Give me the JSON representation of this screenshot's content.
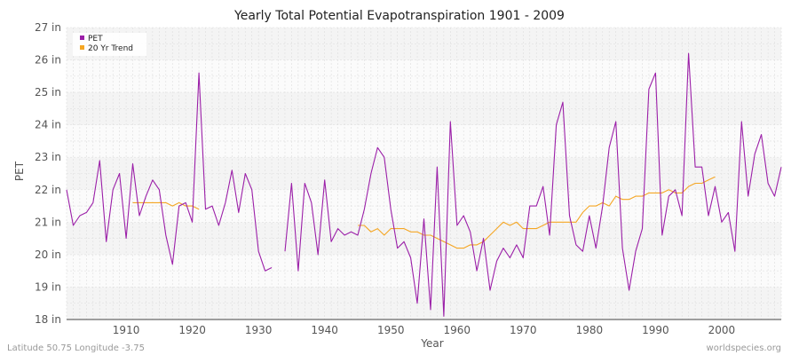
{
  "chart_data": {
    "type": "line",
    "title": "Yearly Total Potential Evapotranspiration 1901 - 2009",
    "xlabel": "Year",
    "ylabel": "PET",
    "xlim": [
      1901,
      2009
    ],
    "ylim": [
      18,
      27
    ],
    "x_ticks": [
      1910,
      1920,
      1930,
      1940,
      1950,
      1960,
      1970,
      1980,
      1990,
      2000
    ],
    "x_tick_labels": [
      "1910",
      "1920",
      "1930",
      "1940",
      "1950",
      "1960",
      "1970",
      "1980",
      "1990",
      "2000"
    ],
    "y_ticks": [
      18,
      19,
      20,
      21,
      22,
      23,
      24,
      25,
      26,
      27
    ],
    "y_tick_labels": [
      "18 in",
      "19 in",
      "20 in",
      "21 in",
      "22 in",
      "23 in",
      "24 in",
      "25 in",
      "26 in",
      "27 in"
    ],
    "legend_position": "top-left",
    "grid": true,
    "series": [
      {
        "name": "PET",
        "color": "#9b1fa8",
        "x": [
          1901,
          1902,
          1903,
          1904,
          1905,
          1906,
          1907,
          1908,
          1909,
          1910,
          1911,
          1912,
          1913,
          1914,
          1915,
          1916,
          1917,
          1918,
          1919,
          1920,
          1921,
          1922,
          1923,
          1924,
          1925,
          1926,
          1927,
          1928,
          1929,
          1930,
          1931,
          1932,
          1933,
          1934,
          1935,
          1936,
          1937,
          1938,
          1939,
          1940,
          1941,
          1942,
          1943,
          1944,
          1945,
          1946,
          1947,
          1948,
          1949,
          1950,
          1951,
          1952,
          1953,
          1954,
          1955,
          1956,
          1957,
          1958,
          1959,
          1960,
          1961,
          1962,
          1963,
          1964,
          1965,
          1966,
          1967,
          1968,
          1969,
          1970,
          1971,
          1972,
          1973,
          1974,
          1975,
          1976,
          1977,
          1978,
          1979,
          1980,
          1981,
          1982,
          1983,
          1984,
          1985,
          1986,
          1987,
          1988,
          1989,
          1990,
          1991,
          1992,
          1993,
          1994,
          1995,
          1996,
          1997,
          1998,
          1999,
          2000,
          2001,
          2002,
          2003,
          2004,
          2005,
          2006,
          2007,
          2008,
          2009
        ],
        "values": [
          22.0,
          20.9,
          21.2,
          21.3,
          21.6,
          22.9,
          20.4,
          22.0,
          22.5,
          20.5,
          22.8,
          21.2,
          21.8,
          22.3,
          22.0,
          20.6,
          19.7,
          21.5,
          21.6,
          21.0,
          25.6,
          21.4,
          21.5,
          20.9,
          21.6,
          22.6,
          21.3,
          22.5,
          22.0,
          20.1,
          19.5,
          19.6,
          null,
          20.1,
          22.2,
          19.5,
          22.2,
          21.6,
          20.0,
          22.3,
          20.4,
          20.8,
          20.6,
          20.7,
          20.6,
          21.4,
          22.5,
          23.3,
          23.0,
          21.4,
          20.2,
          20.4,
          19.9,
          18.5,
          21.1,
          18.3,
          22.7,
          18.1,
          24.1,
          20.9,
          21.2,
          20.7,
          19.5,
          20.5,
          18.9,
          19.8,
          20.2,
          19.9,
          20.3,
          19.9,
          21.5,
          21.5,
          22.1,
          20.6,
          24.0,
          24.7,
          21.2,
          20.3,
          20.1,
          21.2,
          20.2,
          21.5,
          23.3,
          24.1,
          20.2,
          18.9,
          20.1,
          20.8,
          25.1,
          25.6,
          20.6,
          21.8,
          22.0,
          21.2,
          26.2,
          22.7,
          22.7,
          21.2,
          22.1,
          21.0,
          21.3,
          20.1,
          24.1,
          21.8,
          23.1,
          23.7,
          22.2,
          21.8,
          22.7
        ]
      },
      {
        "name": "20 Yr Trend",
        "color": "#f5a623",
        "x": [
          1911,
          1912,
          1913,
          1914,
          1915,
          1916,
          1917,
          1918,
          1919,
          1920,
          1921,
          1922,
          1923,
          1924,
          1925,
          1926,
          1927,
          1928,
          1929,
          1930,
          1931,
          1932,
          1933,
          1934,
          1935,
          1936,
          1937,
          1938,
          1939,
          1940,
          1941,
          1942,
          1943,
          1944,
          1945,
          1946,
          1947,
          1948,
          1949,
          1950,
          1951,
          1952,
          1953,
          1954,
          1955,
          1956,
          1957,
          1958,
          1959,
          1960,
          1961,
          1962,
          1963,
          1964,
          1965,
          1966,
          1967,
          1968,
          1969,
          1970,
          1971,
          1972,
          1973,
          1974,
          1975,
          1976,
          1977,
          1978,
          1979,
          1980,
          1981,
          1982,
          1983,
          1984,
          1985,
          1986,
          1987,
          1988,
          1989,
          1990,
          1991,
          1992,
          1993,
          1994,
          1995,
          1996,
          1997,
          1998,
          1999
        ],
        "values": [
          21.6,
          21.6,
          21.6,
          21.6,
          21.6,
          21.6,
          21.5,
          21.6,
          21.5,
          21.5,
          21.4,
          null,
          null,
          null,
          null,
          null,
          null,
          null,
          null,
          null,
          null,
          null,
          null,
          null,
          null,
          null,
          null,
          null,
          null,
          null,
          null,
          null,
          null,
          null,
          20.9,
          20.9,
          20.7,
          20.8,
          20.6,
          20.8,
          20.8,
          20.8,
          20.7,
          20.7,
          20.6,
          20.6,
          20.5,
          20.4,
          20.3,
          20.2,
          20.2,
          20.3,
          20.3,
          20.4,
          20.6,
          20.8,
          21.0,
          20.9,
          21.0,
          20.8,
          20.8,
          20.8,
          20.9,
          21.0,
          21.0,
          21.0,
          21.0,
          21.0,
          21.3,
          21.5,
          21.5,
          21.6,
          21.5,
          21.8,
          21.7,
          21.7,
          21.8,
          21.8,
          21.9,
          21.9,
          21.9,
          22.0,
          21.9,
          21.9,
          22.1,
          22.2,
          22.2,
          22.3,
          22.4
        ]
      }
    ]
  },
  "footer": {
    "left": "Latitude 50.75 Longitude -3.75",
    "right": "worldspecies.org"
  }
}
